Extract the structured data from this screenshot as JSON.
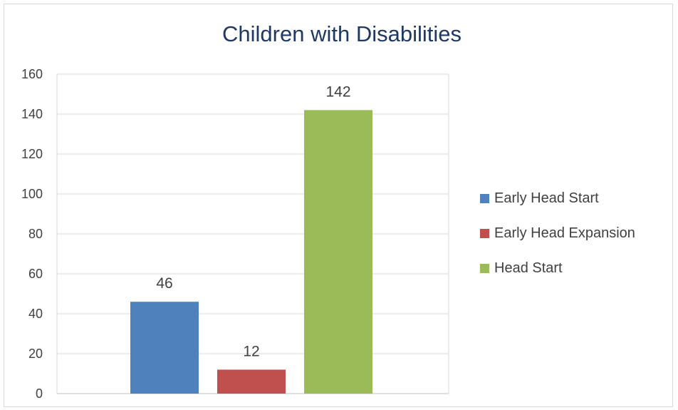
{
  "chart_data": {
    "type": "bar",
    "title": "Children with Disabilities",
    "xlabel": "",
    "ylabel": "",
    "ylim": [
      0,
      160
    ],
    "yticks": [
      "0",
      "20",
      "40",
      "60",
      "80",
      "100",
      "120",
      "140",
      "160"
    ],
    "grid": true,
    "legend_position": "right",
    "series": [
      {
        "name": "Early Head Start",
        "value": 46,
        "label": "46",
        "color": "#4f81bd"
      },
      {
        "name": "Early Head Expansion",
        "value": 12,
        "label": "12",
        "color": "#c0504d"
      },
      {
        "name": "Head Start",
        "value": 142,
        "label": "142",
        "color": "#9bbb59"
      }
    ]
  }
}
